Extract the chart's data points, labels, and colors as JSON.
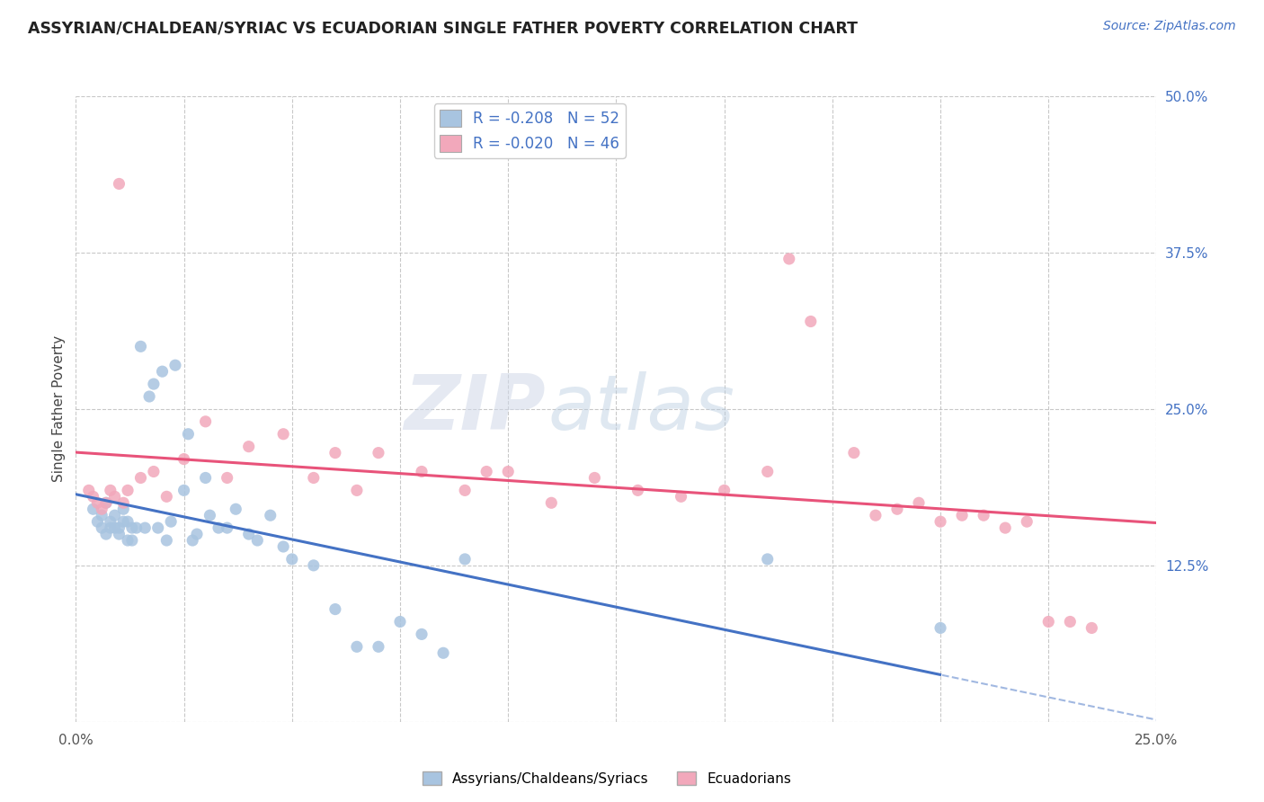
{
  "title": "ASSYRIAN/CHALDEAN/SYRIAC VS ECUADORIAN SINGLE FATHER POVERTY CORRELATION CHART",
  "source": "Source: ZipAtlas.com",
  "ylabel": "Single Father Poverty",
  "xlim": [
    0.0,
    0.25
  ],
  "ylim": [
    0.0,
    0.5
  ],
  "xtick_positions": [
    0.0,
    0.025,
    0.05,
    0.075,
    0.1,
    0.125,
    0.15,
    0.175,
    0.2,
    0.225,
    0.25
  ],
  "ytick_positions": [
    0.0,
    0.125,
    0.25,
    0.375,
    0.5
  ],
  "ytick_labels_right": [
    "",
    "12.5%",
    "25.0%",
    "37.5%",
    "50.0%"
  ],
  "blue_R": "-0.208",
  "blue_N": "52",
  "pink_R": "-0.020",
  "pink_N": "46",
  "blue_color": "#a8c4e0",
  "pink_color": "#f2a8bb",
  "blue_line_color": "#4472c4",
  "pink_line_color": "#e8537a",
  "legend_label_blue": "Assyrians/Chaldeans/Syriacs",
  "legend_label_pink": "Ecuadorians",
  "watermark_zip": "ZIP",
  "watermark_atlas": "atlas",
  "blue_scatter_x": [
    0.004,
    0.005,
    0.006,
    0.006,
    0.007,
    0.007,
    0.008,
    0.008,
    0.009,
    0.009,
    0.01,
    0.01,
    0.011,
    0.011,
    0.012,
    0.012,
    0.013,
    0.013,
    0.014,
    0.015,
    0.016,
    0.017,
    0.018,
    0.019,
    0.02,
    0.021,
    0.022,
    0.023,
    0.025,
    0.026,
    0.027,
    0.028,
    0.03,
    0.031,
    0.033,
    0.035,
    0.037,
    0.04,
    0.042,
    0.045,
    0.048,
    0.05,
    0.055,
    0.06,
    0.065,
    0.07,
    0.075,
    0.08,
    0.085,
    0.09,
    0.16,
    0.2
  ],
  "blue_scatter_y": [
    0.17,
    0.16,
    0.155,
    0.165,
    0.15,
    0.175,
    0.155,
    0.16,
    0.155,
    0.165,
    0.15,
    0.155,
    0.16,
    0.17,
    0.145,
    0.16,
    0.155,
    0.145,
    0.155,
    0.3,
    0.155,
    0.26,
    0.27,
    0.155,
    0.28,
    0.145,
    0.16,
    0.285,
    0.185,
    0.23,
    0.145,
    0.15,
    0.195,
    0.165,
    0.155,
    0.155,
    0.17,
    0.15,
    0.145,
    0.165,
    0.14,
    0.13,
    0.125,
    0.09,
    0.06,
    0.06,
    0.08,
    0.07,
    0.055,
    0.13,
    0.13,
    0.075
  ],
  "pink_scatter_x": [
    0.003,
    0.004,
    0.005,
    0.006,
    0.007,
    0.008,
    0.009,
    0.01,
    0.011,
    0.012,
    0.015,
    0.018,
    0.021,
    0.025,
    0.03,
    0.035,
    0.04,
    0.048,
    0.055,
    0.06,
    0.065,
    0.07,
    0.08,
    0.09,
    0.095,
    0.1,
    0.11,
    0.12,
    0.13,
    0.14,
    0.15,
    0.16,
    0.165,
    0.17,
    0.18,
    0.185,
    0.19,
    0.195,
    0.2,
    0.205,
    0.21,
    0.215,
    0.22,
    0.225,
    0.23,
    0.235
  ],
  "pink_scatter_y": [
    0.185,
    0.18,
    0.175,
    0.17,
    0.175,
    0.185,
    0.18,
    0.43,
    0.175,
    0.185,
    0.195,
    0.2,
    0.18,
    0.21,
    0.24,
    0.195,
    0.22,
    0.23,
    0.195,
    0.215,
    0.185,
    0.215,
    0.2,
    0.185,
    0.2,
    0.2,
    0.175,
    0.195,
    0.185,
    0.18,
    0.185,
    0.2,
    0.37,
    0.32,
    0.215,
    0.165,
    0.17,
    0.175,
    0.16,
    0.165,
    0.165,
    0.155,
    0.16,
    0.08,
    0.08,
    0.075
  ]
}
